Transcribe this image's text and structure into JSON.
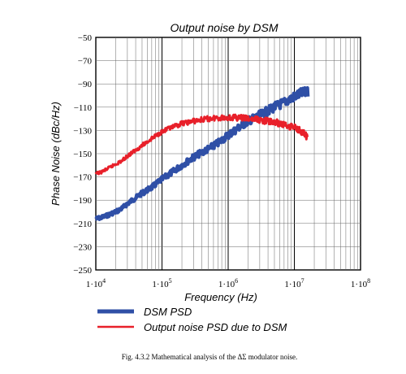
{
  "chart_data": {
    "type": "line",
    "title": "Output noise by DSM",
    "xlabel": "Frequency   (Hz)",
    "ylabel": "Phase Noise  (dBc/Hz)",
    "x_scale": "log",
    "xlim": [
      10000,
      100000000
    ],
    "ylim": [
      -250,
      -50
    ],
    "x_ticks": [
      {
        "base": "1·10",
        "exp": "4"
      },
      {
        "base": "1·10",
        "exp": "5"
      },
      {
        "base": "1·10",
        "exp": "6"
      },
      {
        "base": "1·10",
        "exp": "7"
      },
      {
        "base": "1·10",
        "exp": "8"
      }
    ],
    "y_ticks": [
      "−50",
      "−70",
      "−90",
      "−110",
      "−130",
      "−150",
      "−170",
      "−190",
      "−210",
      "−230",
      "−250"
    ],
    "grid": true,
    "legend_position": "below",
    "series": [
      {
        "name": "DSM PSD",
        "color": "#2f4fa6",
        "x": [
          10000,
          12000,
          15000,
          20000,
          25000,
          30000,
          40000,
          50000,
          70000,
          100000,
          150000,
          200000,
          300000,
          500000,
          700000,
          1000000,
          1500000,
          2000000,
          3000000,
          5000000,
          7000000,
          10000000,
          13000000,
          16000000
        ],
        "y": [
          -206,
          -205,
          -203,
          -200,
          -197,
          -193,
          -188,
          -184,
          -179,
          -172,
          -165,
          -160,
          -153,
          -146,
          -141,
          -134,
          -127,
          -122,
          -117,
          -110,
          -106,
          -101,
          -98,
          -97
        ]
      },
      {
        "name": "Output noise PSD due to DSM",
        "color": "#e8202a",
        "x": [
          10000,
          12000,
          15000,
          20000,
          25000,
          30000,
          40000,
          50000,
          70000,
          100000,
          150000,
          200000,
          300000,
          500000,
          700000,
          1000000,
          1500000,
          2000000,
          3000000,
          5000000,
          7000000,
          10000000,
          13000000,
          16000000
        ],
        "y": [
          -167,
          -166,
          -163,
          -159,
          -156,
          -152,
          -147,
          -143,
          -137,
          -131,
          -127,
          -124,
          -122,
          -120,
          -119,
          -119,
          -119,
          -120,
          -121,
          -123,
          -125,
          -127,
          -131,
          -137
        ]
      }
    ]
  },
  "caption": "Fig. 4.3.2 Mathematical analysis of the ΔΣ modulator noise."
}
